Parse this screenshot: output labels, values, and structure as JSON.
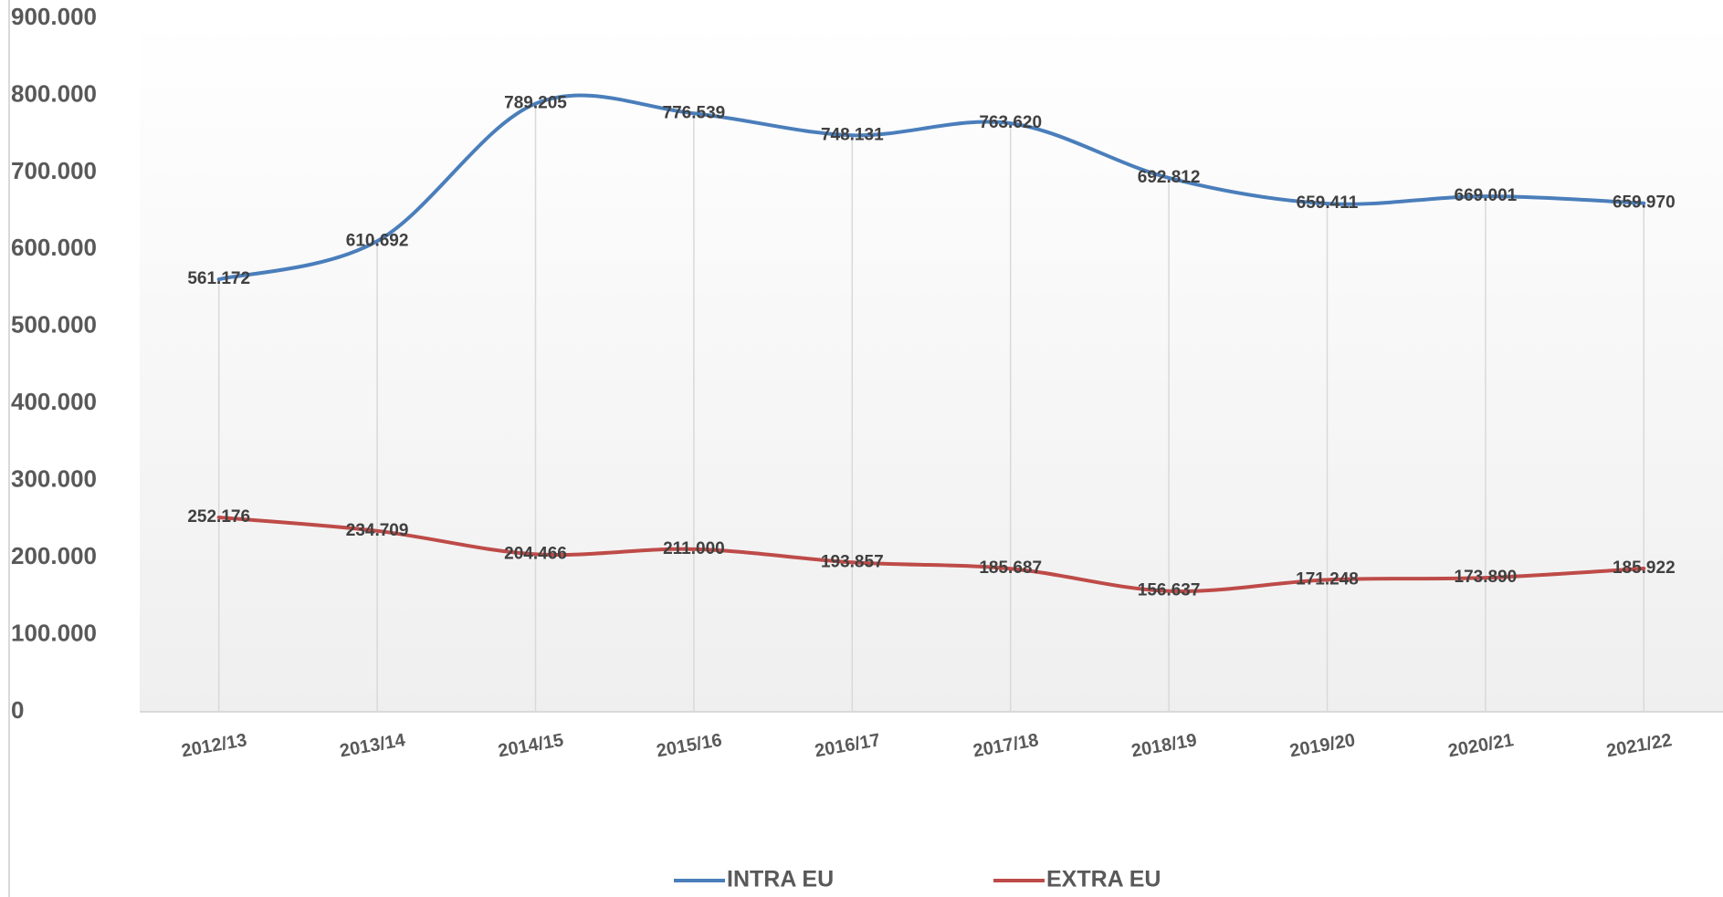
{
  "chart_data": {
    "type": "line",
    "categories": [
      "2012/13",
      "2013/14",
      "2014/15",
      "2015/16",
      "2016/17",
      "2017/18",
      "2018/19",
      "2019/20",
      "2020/21",
      "2021/22"
    ],
    "series": [
      {
        "name": "INTRA EU",
        "color": "#4a7ebb",
        "values": [
          561172,
          610692,
          789205,
          776539,
          748131,
          763620,
          692812,
          659411,
          669001,
          659970
        ],
        "value_labels": [
          "561.172",
          "610.692",
          "789.205",
          "776.539",
          "748.131",
          "763.620",
          "692.812",
          "659.411",
          "669.001",
          "659.970"
        ]
      },
      {
        "name": "EXTRA EU",
        "color": "#be4b48",
        "values": [
          252176,
          234709,
          204466,
          211000,
          193857,
          185687,
          156637,
          171248,
          173890,
          185922
        ],
        "value_labels": [
          "252.176",
          "234.709",
          "204.466",
          "211.000",
          "193.857",
          "185.687",
          "156.637",
          "171.248",
          "173.890",
          "185.922"
        ]
      }
    ],
    "ylim": [
      0,
      900000
    ],
    "yticks": [
      0,
      {
        "value": 100000,
        "label": "100.000"
      },
      {
        "value": 200000,
        "label": "200.000"
      },
      {
        "value": 300000,
        "label": "300.000"
      },
      {
        "value": 400000,
        "label": "400.000"
      },
      {
        "value": 500000,
        "label": "500.000"
      },
      {
        "value": 600000,
        "label": "600.000"
      },
      {
        "value": 700000,
        "label": "700.000"
      },
      {
        "value": 800000,
        "label": "800.000"
      },
      {
        "value": 900000,
        "label": "900.000"
      }
    ],
    "legend": "bottom"
  }
}
